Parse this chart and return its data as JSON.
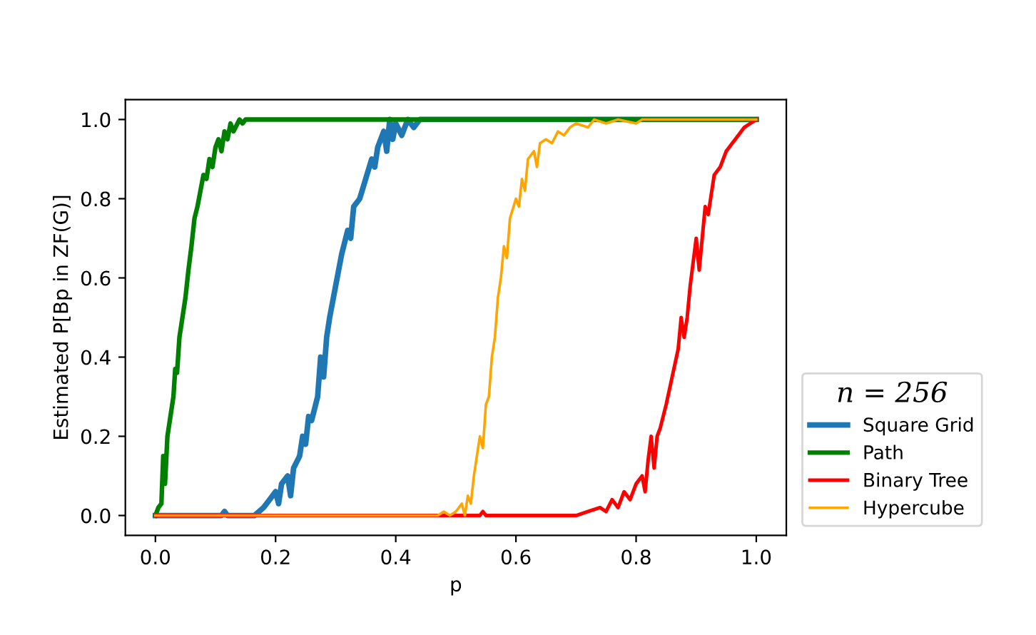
{
  "chart_data": {
    "type": "line",
    "xlabel": "p",
    "ylabel": "Estimated P[Bp in ZF(G)]",
    "legend_title": "n = 256",
    "legend": "right",
    "grid": false,
    "xlim": [
      -0.05,
      1.05
    ],
    "ylim": [
      -0.05,
      1.05
    ],
    "xticks": [
      {
        "value": 0,
        "label": "0.0"
      },
      0.2,
      0.4,
      0.6,
      0.8,
      {
        "value": 1,
        "label": "1.0"
      }
    ],
    "yticks": [
      {
        "value": 0,
        "label": "0.0"
      },
      0.2,
      0.4,
      0.6,
      0.8,
      {
        "value": 1,
        "label": "1.0"
      }
    ],
    "series": [
      {
        "name": "Square Grid",
        "color": "#1f77b4",
        "x": [
          0,
          0.11,
          0.115,
          0.12,
          0.165,
          0.18,
          0.19,
          0.2,
          0.205,
          0.21,
          0.22,
          0.225,
          0.23,
          0.24,
          0.245,
          0.25,
          0.255,
          0.26,
          0.27,
          0.275,
          0.28,
          0.285,
          0.29,
          0.3,
          0.305,
          0.31,
          0.32,
          0.325,
          0.33,
          0.34,
          0.35,
          0.36,
          0.365,
          0.37,
          0.38,
          0.385,
          0.39,
          0.395,
          0.4,
          0.41,
          0.42,
          0.43,
          0.44,
          1.0
        ],
        "values": [
          0,
          0,
          0.01,
          0,
          0,
          0.02,
          0.04,
          0.06,
          0.03,
          0.08,
          0.1,
          0.05,
          0.12,
          0.15,
          0.2,
          0.18,
          0.25,
          0.24,
          0.3,
          0.4,
          0.35,
          0.45,
          0.5,
          0.58,
          0.62,
          0.66,
          0.72,
          0.7,
          0.78,
          0.8,
          0.85,
          0.9,
          0.88,
          0.93,
          0.97,
          0.92,
          1.0,
          0.95,
          0.99,
          0.96,
          1.0,
          0.98,
          1.0,
          1.0
        ]
      },
      {
        "name": "Path",
        "color": "#008000",
        "x": [
          0,
          0.005,
          0.01,
          0.013,
          0.016,
          0.02,
          0.025,
          0.03,
          0.033,
          0.036,
          0.04,
          0.045,
          0.05,
          0.055,
          0.06,
          0.065,
          0.07,
          0.075,
          0.08,
          0.085,
          0.09,
          0.095,
          0.1,
          0.105,
          0.11,
          0.115,
          0.12,
          0.125,
          0.13,
          0.14,
          0.145,
          0.15,
          1.0
        ],
        "values": [
          0,
          0.02,
          0.03,
          0.15,
          0.08,
          0.2,
          0.25,
          0.3,
          0.37,
          0.36,
          0.45,
          0.5,
          0.55,
          0.62,
          0.68,
          0.75,
          0.78,
          0.82,
          0.86,
          0.85,
          0.9,
          0.88,
          0.93,
          0.95,
          0.92,
          0.97,
          0.95,
          0.99,
          0.97,
          1.0,
          0.99,
          1.0,
          1.0
        ]
      },
      {
        "name": "Binary Tree",
        "color": "#ff0000",
        "x": [
          0,
          0.54,
          0.545,
          0.55,
          0.7,
          0.72,
          0.74,
          0.75,
          0.76,
          0.77,
          0.78,
          0.79,
          0.8,
          0.81,
          0.815,
          0.82,
          0.825,
          0.83,
          0.835,
          0.84,
          0.85,
          0.86,
          0.87,
          0.875,
          0.88,
          0.885,
          0.89,
          0.9,
          0.905,
          0.91,
          0.915,
          0.92,
          0.93,
          0.94,
          0.945,
          0.95,
          0.96,
          0.97,
          0.98,
          0.99,
          1.0
        ],
        "values": [
          0,
          0,
          0.01,
          0,
          0,
          0.01,
          0.02,
          0.01,
          0.04,
          0.02,
          0.06,
          0.04,
          0.08,
          0.1,
          0.06,
          0.14,
          0.2,
          0.12,
          0.2,
          0.22,
          0.28,
          0.35,
          0.42,
          0.5,
          0.45,
          0.5,
          0.58,
          0.7,
          0.62,
          0.7,
          0.78,
          0.76,
          0.86,
          0.88,
          0.9,
          0.92,
          0.94,
          0.96,
          0.98,
          0.99,
          1.0
        ]
      },
      {
        "name": "Hypercube",
        "color": "#ffa500",
        "x": [
          0,
          0.47,
          0.48,
          0.49,
          0.5,
          0.51,
          0.515,
          0.52,
          0.525,
          0.53,
          0.535,
          0.54,
          0.545,
          0.55,
          0.555,
          0.56,
          0.565,
          0.57,
          0.575,
          0.58,
          0.585,
          0.59,
          0.6,
          0.605,
          0.61,
          0.615,
          0.62,
          0.63,
          0.635,
          0.64,
          0.65,
          0.66,
          0.67,
          0.68,
          0.69,
          0.7,
          0.72,
          0.73,
          0.75,
          0.77,
          0.8,
          0.81,
          1.0
        ],
        "values": [
          0,
          0,
          0.01,
          0,
          0.01,
          0.03,
          0,
          0.05,
          0.03,
          0.1,
          0.15,
          0.2,
          0.17,
          0.28,
          0.3,
          0.4,
          0.45,
          0.55,
          0.6,
          0.68,
          0.65,
          0.75,
          0.8,
          0.78,
          0.85,
          0.82,
          0.9,
          0.92,
          0.88,
          0.94,
          0.95,
          0.94,
          0.97,
          0.96,
          0.98,
          0.99,
          0.98,
          1.0,
          0.99,
          1.0,
          0.99,
          1.0,
          1.0
        ]
      }
    ]
  }
}
